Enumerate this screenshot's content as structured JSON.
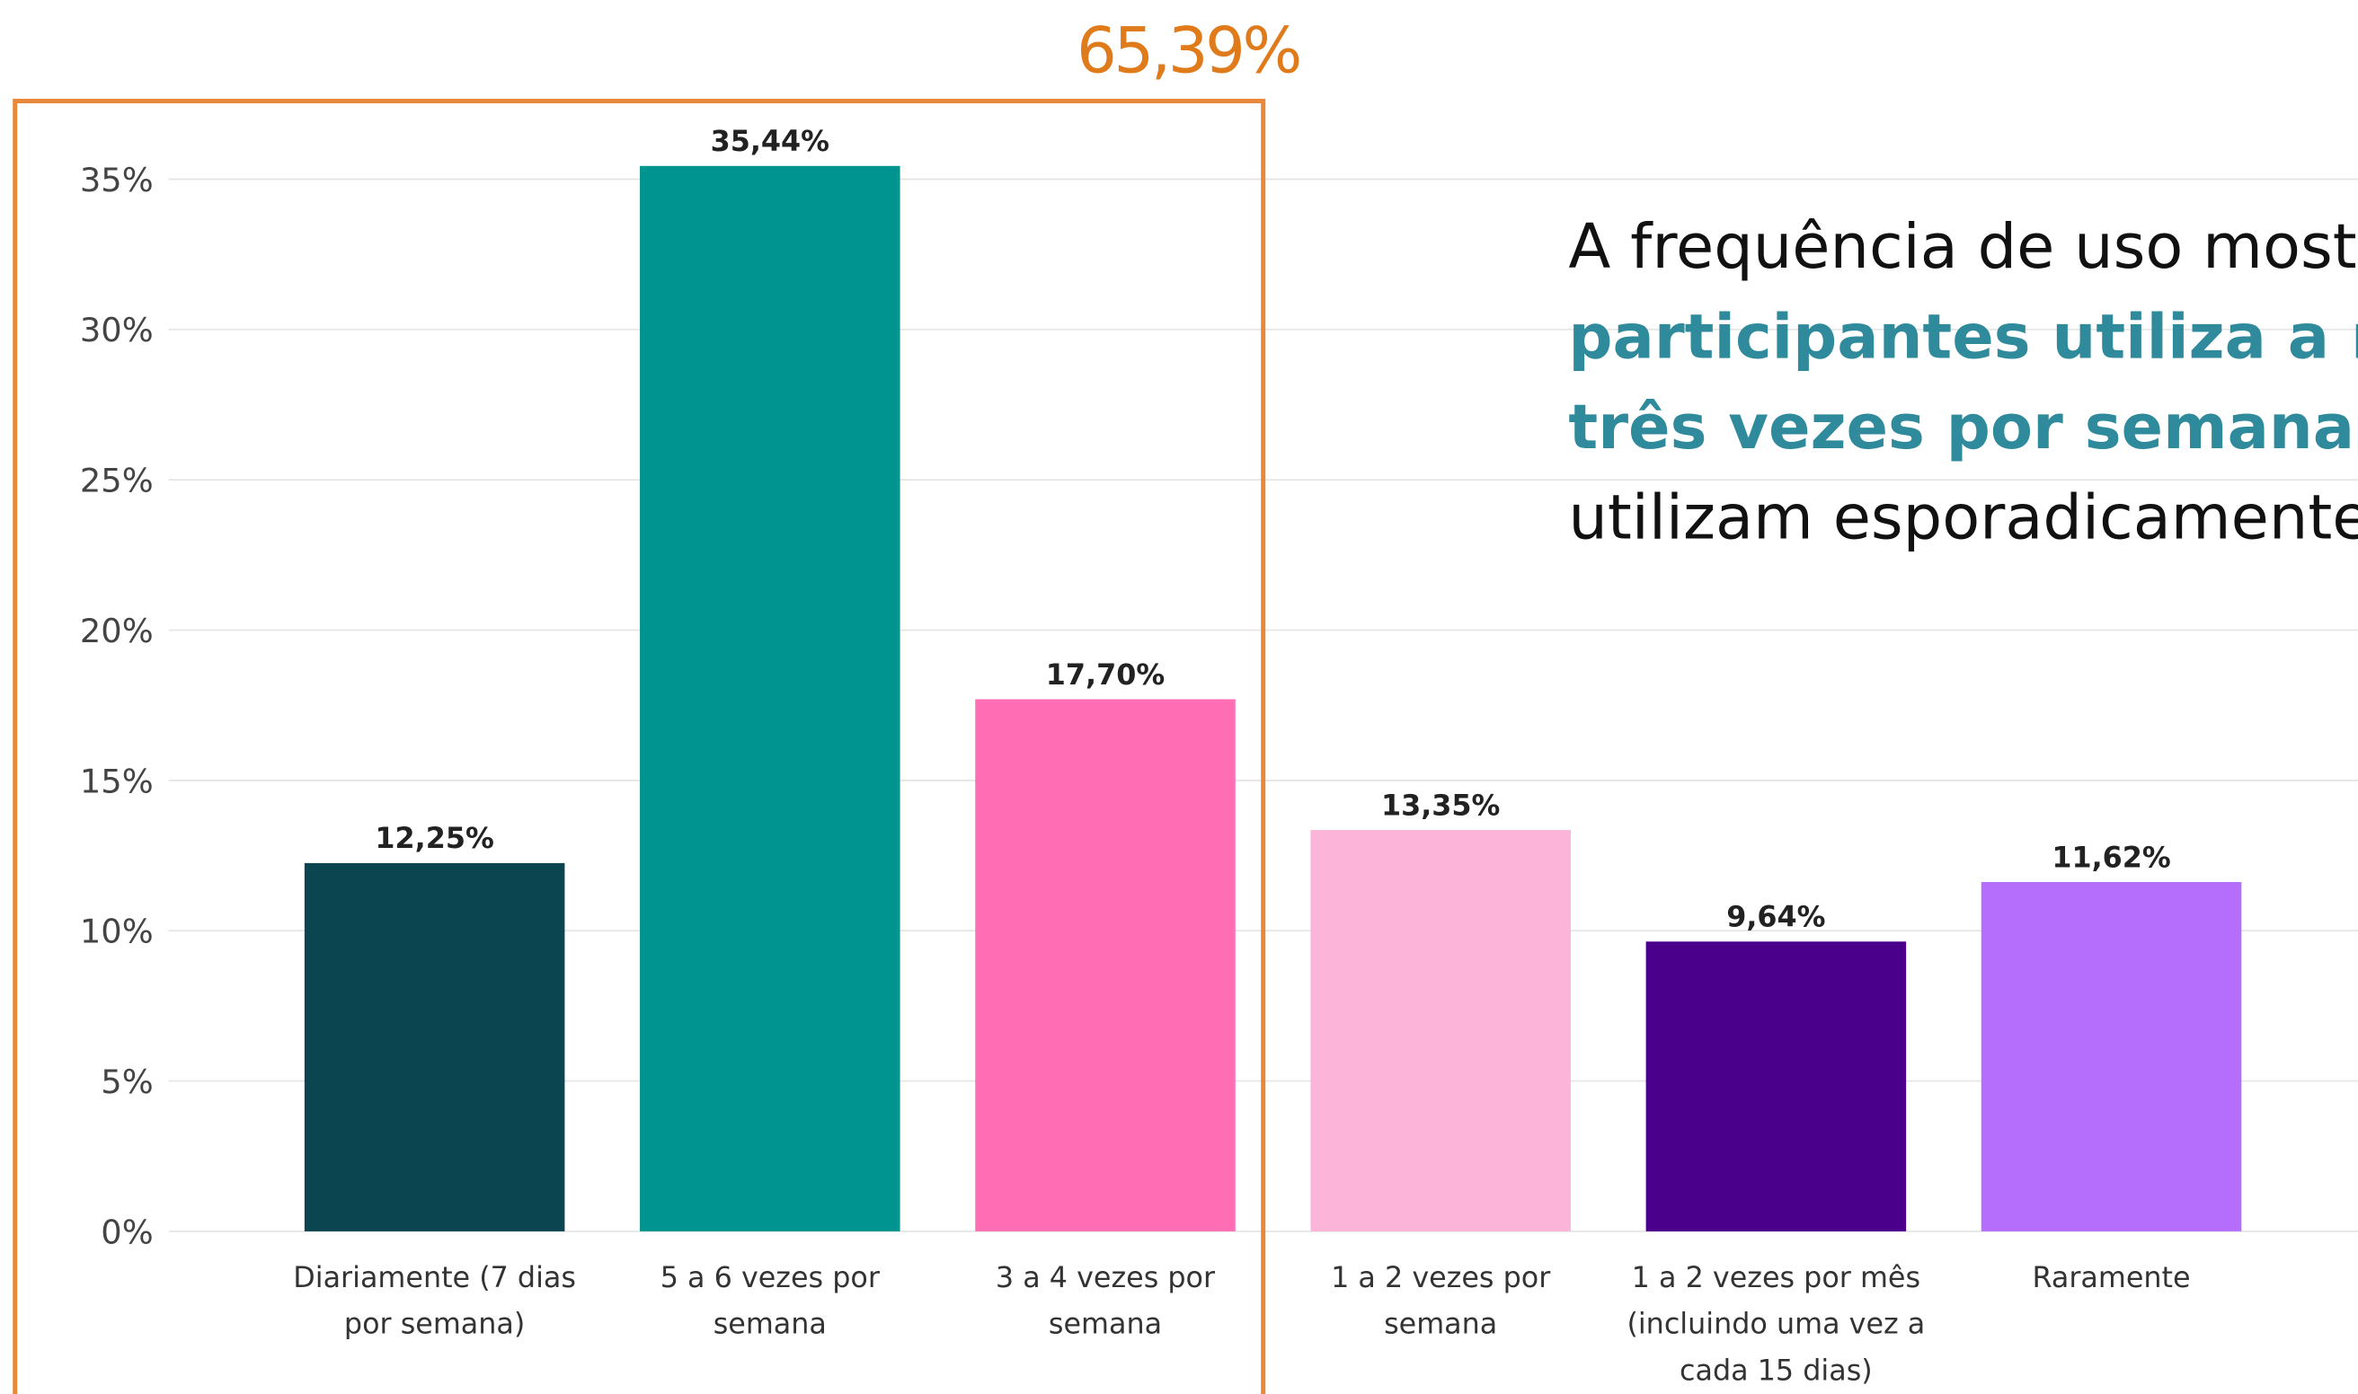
{
  "chart_data": {
    "type": "bar",
    "categories": [
      [
        "Diariamente (7 dias",
        "por semana)"
      ],
      [
        "5 a 6 vezes por",
        "semana"
      ],
      [
        "3 a 4 vezes por",
        "semana"
      ],
      [
        "1 a 2 vezes por",
        "semana"
      ],
      [
        "1 a 2 vezes por mês",
        "(incluindo uma vez a",
        "cada 15 dias)"
      ],
      [
        "Raramente"
      ]
    ],
    "values": [
      12.25,
      35.44,
      17.7,
      13.35,
      9.64,
      11.62
    ],
    "value_labels": [
      "12,25%",
      "35,44%",
      "17,70%",
      "13,35%",
      "9,64%",
      "11,62%"
    ],
    "colors": [
      "#0b4650",
      "#009490",
      "#ff6eb4",
      "#fcb4d9",
      "#4b008c",
      "#b56efc"
    ],
    "ylim": [
      0,
      35
    ],
    "yticks": [
      {
        "value": 0,
        "label": "0%"
      },
      {
        "value": 5,
        "label": "5%"
      },
      {
        "value": 10,
        "label": "10%"
      },
      {
        "value": 15,
        "label": "15%"
      },
      {
        "value": 20,
        "label": "20%"
      },
      {
        "value": 25,
        "label": "25%"
      },
      {
        "value": 30,
        "label": "30%"
      },
      {
        "value": 35,
        "label": "35%"
      }
    ],
    "grid": true,
    "annotation": {
      "label": "65,39%",
      "color": "#e8883a"
    },
    "text_block": [
      [
        {
          "text": "A frequência de uso most",
          "bold": false
        }
      ],
      [
        {
          "text": "participantes utiliza a r",
          "bold": true
        }
      ],
      [
        {
          "text": "três vezes por semana",
          "bold": true
        },
        {
          "text": ", ",
          "bold": false
        }
      ],
      [
        {
          "text": "utilizam esporadicamente",
          "bold": false
        }
      ]
    ]
  }
}
